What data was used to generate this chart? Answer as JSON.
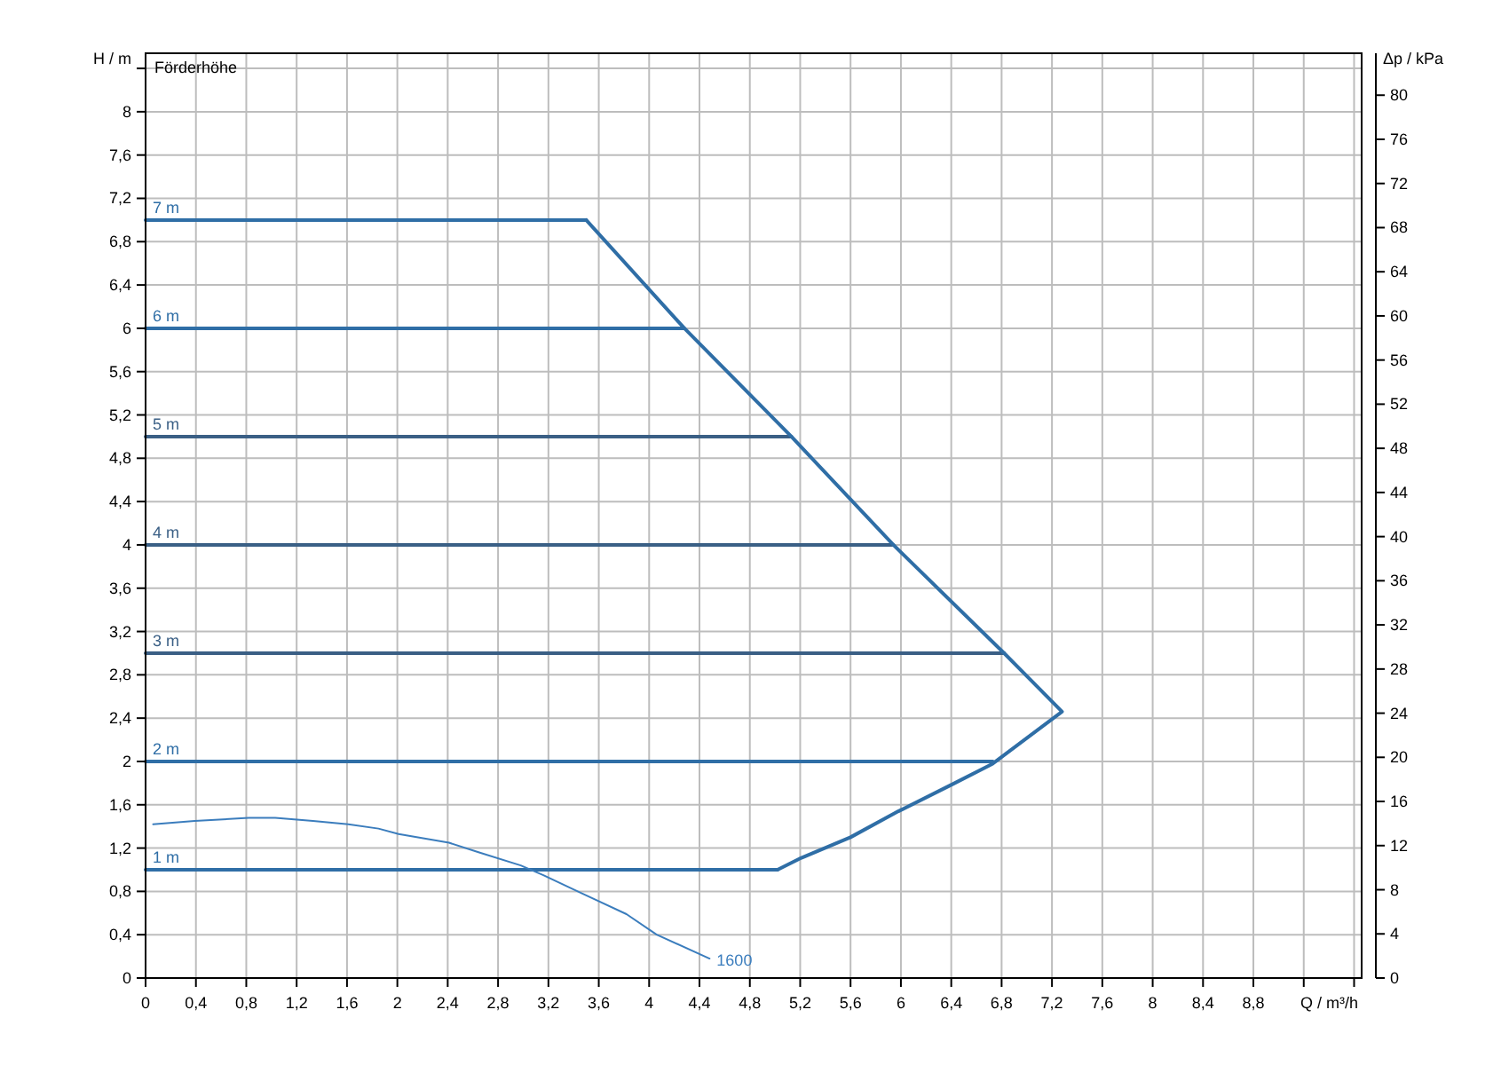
{
  "chart_data": {
    "type": "line",
    "title": "Förderhöhe",
    "xlabel": "Q / m³/h",
    "ylabel": "H / m",
    "y2label": "Δp / kPa",
    "xlim": [
      0,
      9.66
    ],
    "xticks": [
      0,
      {
        "value": 0.4,
        "label": "0,4"
      },
      {
        "value": 0.8,
        "label": "0,8"
      },
      {
        "value": 1.2,
        "label": "1,2"
      },
      {
        "value": 1.6,
        "label": "1,6"
      },
      2,
      {
        "value": 2.4,
        "label": "2,4"
      },
      {
        "value": 2.8,
        "label": "2,8"
      },
      {
        "value": 3.2,
        "label": "3,2"
      },
      {
        "value": 3.6,
        "label": "3,6"
      },
      4,
      {
        "value": 4.4,
        "label": "4,4"
      },
      {
        "value": 4.8,
        "label": "4,8"
      },
      {
        "value": 5.2,
        "label": "5,2"
      },
      {
        "value": 5.6,
        "label": "5,6"
      },
      6,
      {
        "value": 6.4,
        "label": "6,4"
      },
      {
        "value": 6.8,
        "label": "6,8"
      },
      {
        "value": 7.2,
        "label": "7,2"
      },
      {
        "value": 7.6,
        "label": "7,6"
      },
      8,
      {
        "value": 8.4,
        "label": "8,4"
      },
      {
        "value": 8.8,
        "label": "8,8"
      },
      {
        "value": 9.2,
        "label": null
      },
      {
        "value": 9.6,
        "label": null
      }
    ],
    "ylim": [
      0,
      8.54
    ],
    "yticks": [
      0,
      {
        "value": 0.4,
        "label": "0,4"
      },
      {
        "value": 0.8,
        "label": "0,8"
      },
      {
        "value": 1.2,
        "label": "1,2"
      },
      {
        "value": 1.6,
        "label": "1,6"
      },
      2,
      {
        "value": 2.4,
        "label": "2,4"
      },
      {
        "value": 2.8,
        "label": "2,8"
      },
      {
        "value": 3.2,
        "label": "3,2"
      },
      {
        "value": 3.6,
        "label": "3,6"
      },
      4,
      {
        "value": 4.4,
        "label": "4,4"
      },
      {
        "value": 4.8,
        "label": "4,8"
      },
      {
        "value": 5.2,
        "label": "5,2"
      },
      {
        "value": 5.6,
        "label": "5,6"
      },
      6,
      {
        "value": 6.4,
        "label": "6,4"
      },
      {
        "value": 6.8,
        "label": "6,8"
      },
      {
        "value": 7.2,
        "label": "7,2"
      },
      {
        "value": 7.6,
        "label": "7,6"
      },
      8,
      {
        "value": 8.4,
        "label": null
      }
    ],
    "y2lim": [
      0,
      83.8
    ],
    "y2ticks": [
      0,
      4,
      8,
      12,
      16,
      20,
      24,
      28,
      32,
      36,
      40,
      44,
      48,
      52,
      56,
      60,
      64,
      68,
      72,
      76,
      80
    ],
    "grid": true,
    "marker": "none",
    "line_style": "solid",
    "series": [
      {
        "name": "7 m",
        "color": "#2f6ea6",
        "x": [
          0,
          3.5
        ],
        "values": [
          7,
          7
        ]
      },
      {
        "name": "6 m",
        "color": "#2f6ea6",
        "x": [
          0,
          4.28
        ],
        "values": [
          6,
          6
        ]
      },
      {
        "name": "5 m",
        "color": "#3a5f85",
        "x": [
          0,
          5.13
        ],
        "values": [
          5,
          5
        ]
      },
      {
        "name": "4 m",
        "color": "#3a5f85",
        "x": [
          0,
          5.94
        ],
        "values": [
          4,
          4
        ]
      },
      {
        "name": "3 m",
        "color": "#3a5f85",
        "x": [
          0,
          6.82
        ],
        "values": [
          3,
          3
        ]
      },
      {
        "name": "2 m",
        "color": "#2f6ea6",
        "x": [
          0,
          6.73
        ],
        "values": [
          2,
          2
        ]
      },
      {
        "name": "1 m",
        "color": "#2f6ea6",
        "x": [
          0,
          5.02
        ],
        "values": [
          1,
          1
        ]
      },
      {
        "color": "#2f6ea6",
        "x": [
          3.5,
          4.28,
          5.13,
          5.94,
          6.82,
          7.28,
          6.73,
          6.41,
          5.98,
          5.6,
          5.21,
          5.02
        ],
        "values": [
          7,
          6,
          5,
          4,
          3,
          2.46,
          1.98,
          1.79,
          1.54,
          1.3,
          1.11,
          1
        ]
      },
      {
        "name": "1600",
        "color": "#3b7dbd",
        "x": [
          0.06,
          0.39,
          0.82,
          1.03,
          1.33,
          1.61,
          1.85,
          2.01,
          2.41,
          2.65,
          2.98,
          3.16,
          3.47,
          3.82,
          4.06,
          4.48
        ],
        "values": [
          1.42,
          1.45,
          1.48,
          1.48,
          1.45,
          1.42,
          1.38,
          1.33,
          1.25,
          1.16,
          1.04,
          0.95,
          0.78,
          0.59,
          0.4,
          0.18
        ]
      }
    ]
  }
}
